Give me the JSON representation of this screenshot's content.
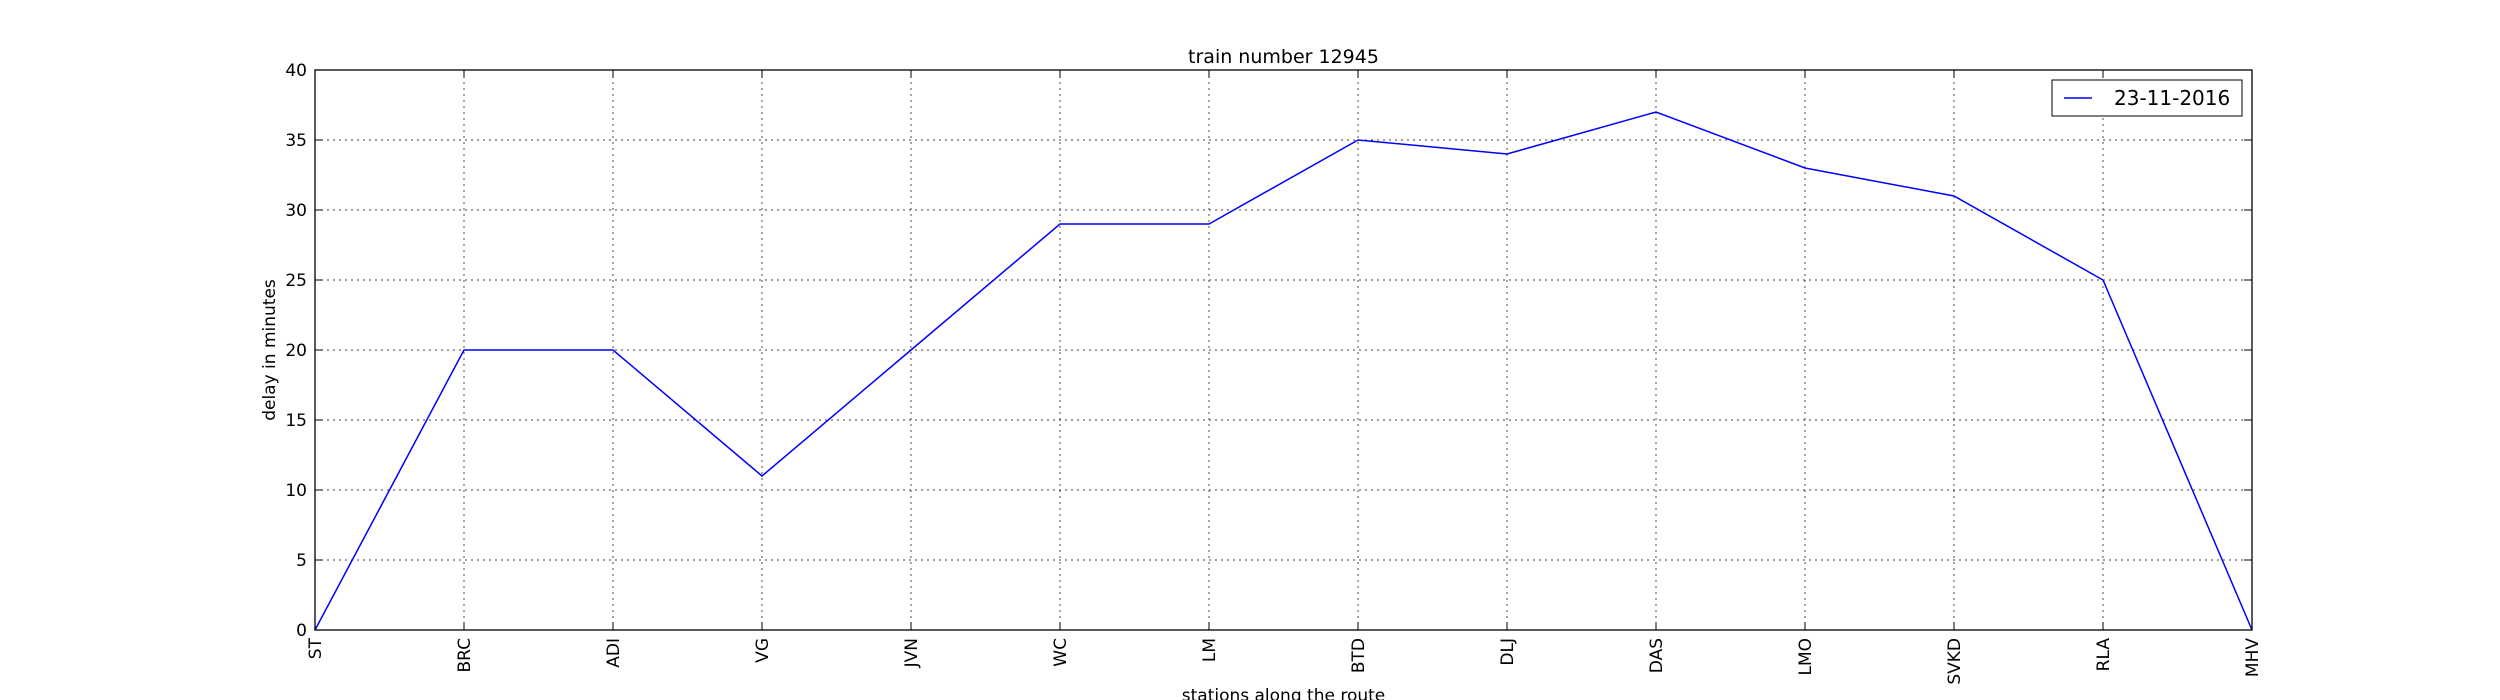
{
  "chart_data": {
    "type": "line",
    "title": "train number 12945",
    "xlabel": "stations along the route",
    "ylabel": "delay in minutes",
    "categories": [
      "ST",
      "BRC",
      "ADI",
      "VG",
      "JVN",
      "WC",
      "LM",
      "BTD",
      "DLJ",
      "DAS",
      "LMO",
      "SVKD",
      "RLA",
      "MHV"
    ],
    "series": [
      {
        "name": "23-11-2016",
        "color": "#0000ff",
        "values": [
          0,
          20,
          20,
          11,
          20,
          29,
          29,
          35,
          34,
          37,
          33,
          31,
          25,
          0
        ]
      }
    ],
    "ylim": [
      0,
      40
    ],
    "yticks": [
      0,
      5,
      10,
      15,
      20,
      25,
      30,
      35,
      40
    ],
    "grid": true,
    "legend": "top-right"
  }
}
